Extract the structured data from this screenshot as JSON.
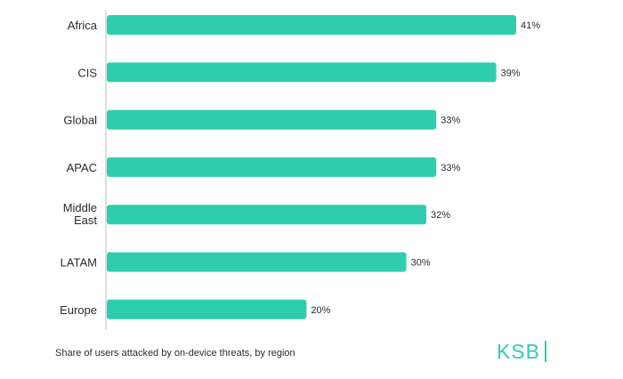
{
  "chart_data": {
    "type": "bar",
    "orientation": "horizontal",
    "categories": [
      "Africa",
      "CIS",
      "Global",
      "APAC",
      "Middle East",
      "LATAM",
      "Europe"
    ],
    "values": [
      41,
      39,
      33,
      33,
      32,
      30,
      20
    ],
    "value_labels": [
      "41%",
      "39%",
      "33%",
      "33%",
      "32%",
      "30%",
      "20%"
    ],
    "unit": "%",
    "xlim": [
      0,
      41
    ],
    "grid": false,
    "title": "",
    "xlabel": "",
    "ylabel": ""
  },
  "caption": "Share of users attacked by on-device threats, by region",
  "logo": {
    "text": "KSB"
  },
  "colors": {
    "bar": "#2ecdb0",
    "axis": "#bdbdbd",
    "text": "#2b2b2b",
    "logo": "#2ecdb0"
  }
}
